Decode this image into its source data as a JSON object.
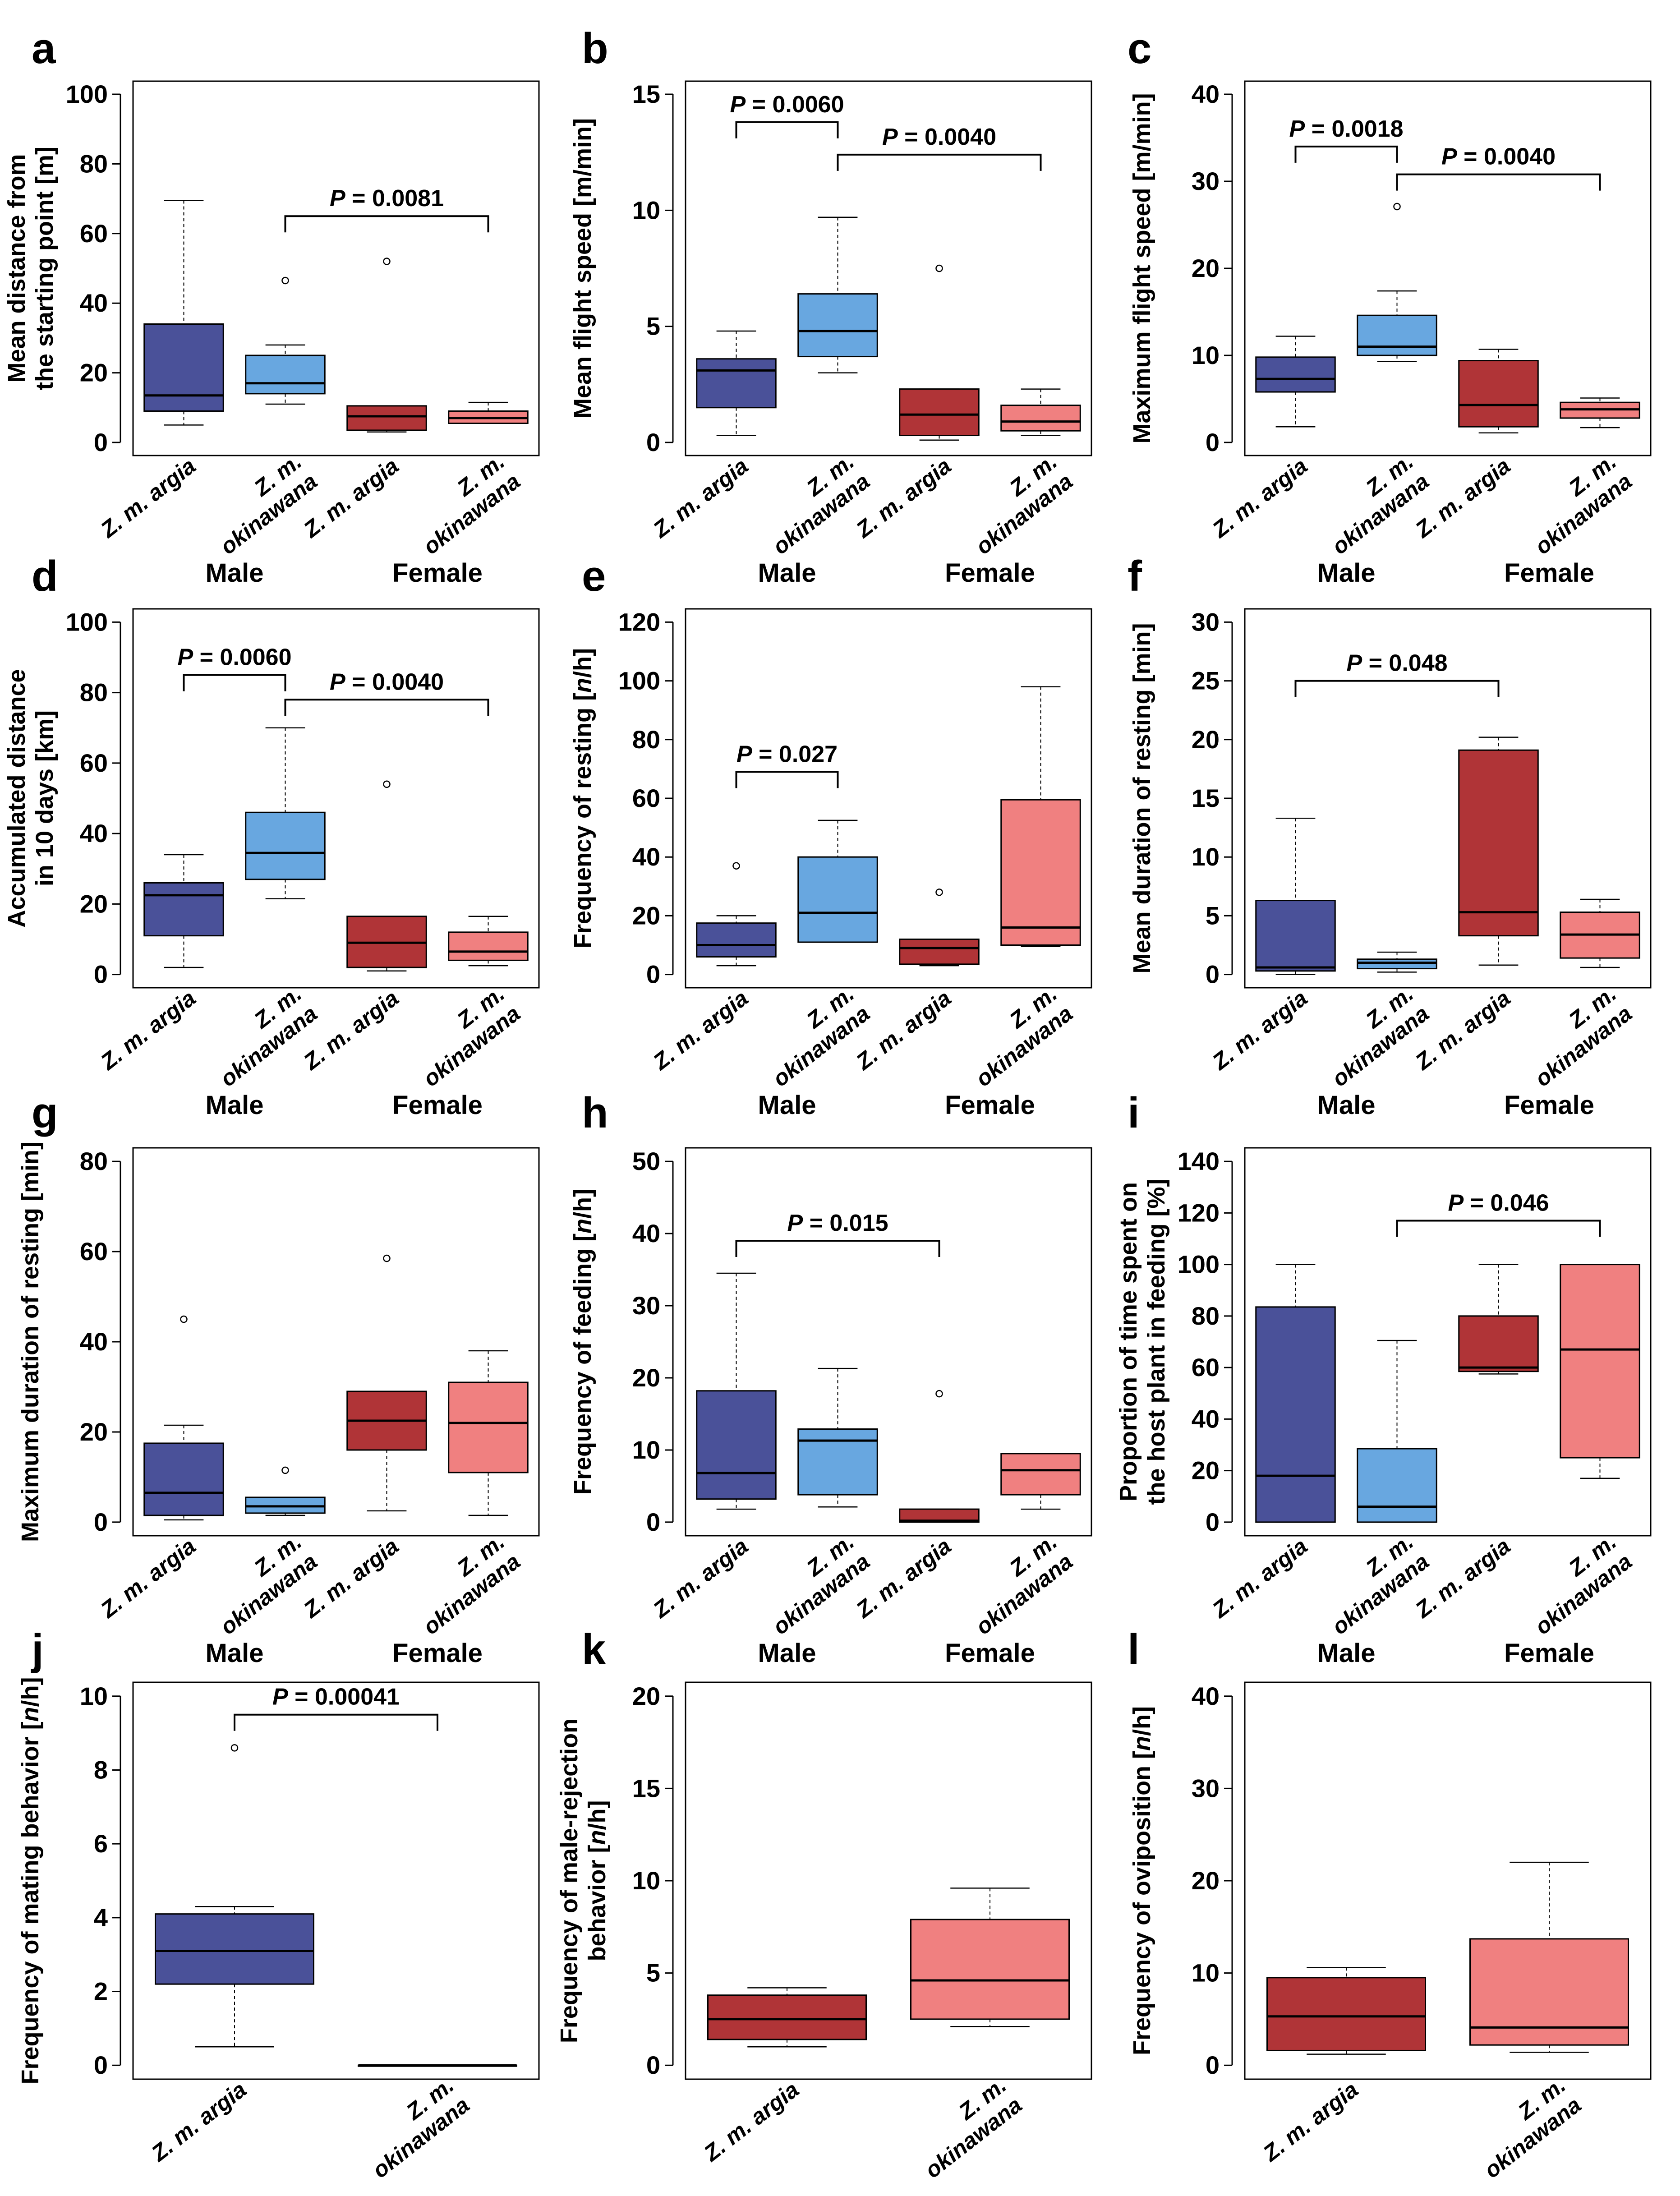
{
  "figure": {
    "description_free": true
  },
  "colors": {
    "argia_male": "#4a5199",
    "okinawana_male": "#68a7e0",
    "argia_female": "#b03437",
    "okinawana_female": "#f08080",
    "median": "#000000",
    "axis": "#000000"
  },
  "chart_data": [
    {
      "id": "a",
      "type": "boxplot",
      "letter": "a",
      "ylabel": [
        "Mean distance from",
        "the starting point [m]"
      ],
      "ylim": [
        0,
        100
      ],
      "yticks": [
        0,
        20,
        40,
        60,
        80,
        100
      ],
      "categories": [
        "Z. m. argia",
        "Z. m. okinawana",
        "Z. m. argia",
        "Z. m. okinawana"
      ],
      "groups": [
        "Male",
        "Female"
      ],
      "boxes": [
        {
          "color": "argia_male",
          "min": 5,
          "q1": 9,
          "median": 13.5,
          "q3": 34,
          "max": 69.5,
          "outliers": []
        },
        {
          "color": "okinawana_male",
          "min": 11,
          "q1": 14,
          "median": 17,
          "q3": 25,
          "max": 28,
          "outliers": [
            46.5
          ]
        },
        {
          "color": "argia_female",
          "min": 3,
          "q1": 3.5,
          "median": 7.5,
          "q3": 10.5,
          "max": 10.5,
          "outliers": [
            52
          ]
        },
        {
          "color": "okinawana_female",
          "min": 5.5,
          "q1": 5.5,
          "median": 7,
          "q3": 9,
          "max": 11.5,
          "outliers": []
        }
      ],
      "brackets": [
        {
          "from": 1,
          "to": 3,
          "y": 65,
          "label": "P = 0.0081"
        }
      ]
    },
    {
      "id": "b",
      "type": "boxplot",
      "letter": "b",
      "ylabel": [
        "Mean flight speed [m/min]"
      ],
      "ylim": [
        0,
        15
      ],
      "yticks": [
        0,
        5,
        10,
        15
      ],
      "categories": [
        "Z. m. argia",
        "Z. m. okinawana",
        "Z. m. argia",
        "Z. m. okinawana"
      ],
      "groups": [
        "Male",
        "Female"
      ],
      "boxes": [
        {
          "color": "argia_male",
          "min": 0.3,
          "q1": 1.5,
          "median": 3.1,
          "q3": 3.6,
          "max": 4.8,
          "outliers": []
        },
        {
          "color": "okinawana_male",
          "min": 3,
          "q1": 3.7,
          "median": 4.8,
          "q3": 6.4,
          "max": 9.7,
          "outliers": []
        },
        {
          "color": "argia_female",
          "min": 0.1,
          "q1": 0.3,
          "median": 1.2,
          "q3": 2.3,
          "max": 2.3,
          "outliers": [
            7.5
          ]
        },
        {
          "color": "okinawana_female",
          "min": 0.3,
          "q1": 0.5,
          "median": 0.9,
          "q3": 1.6,
          "max": 2.3,
          "outliers": []
        }
      ],
      "brackets": [
        {
          "from": 0,
          "to": 1,
          "y": 13.8,
          "label": "P = 0.0060"
        },
        {
          "from": 1,
          "to": 3,
          "y": 12.4,
          "label": "P = 0.0040"
        }
      ]
    },
    {
      "id": "c",
      "type": "boxplot",
      "letter": "c",
      "ylabel": [
        "Maximum flight speed [m/min]"
      ],
      "ylim": [
        0,
        40
      ],
      "yticks": [
        0,
        10,
        20,
        30,
        40
      ],
      "categories": [
        "Z. m. argia",
        "Z. m. okinawana",
        "Z. m. argia",
        "Z. m. okinawana"
      ],
      "groups": [
        "Male",
        "Female"
      ],
      "boxes": [
        {
          "color": "argia_male",
          "min": 1.8,
          "q1": 5.8,
          "median": 7.3,
          "q3": 9.8,
          "max": 12.2,
          "outliers": []
        },
        {
          "color": "okinawana_male",
          "min": 9.3,
          "q1": 10,
          "median": 11,
          "q3": 14.6,
          "max": 17.4,
          "outliers": [
            27.1
          ]
        },
        {
          "color": "argia_female",
          "min": 1.1,
          "q1": 1.8,
          "median": 4.3,
          "q3": 9.4,
          "max": 10.7,
          "outliers": []
        },
        {
          "color": "okinawana_female",
          "min": 1.7,
          "q1": 2.8,
          "median": 3.8,
          "q3": 4.6,
          "max": 5.1,
          "outliers": []
        }
      ],
      "brackets": [
        {
          "from": 0,
          "to": 1,
          "y": 34,
          "label": "P = 0.0018"
        },
        {
          "from": 1,
          "to": 3,
          "y": 30.8,
          "label": "P = 0.0040"
        }
      ]
    },
    {
      "id": "d",
      "type": "boxplot",
      "letter": "d",
      "ylabel": [
        "Accumulated distance",
        "in 10 days [km]"
      ],
      "ylim": [
        0,
        100
      ],
      "yticks": [
        0,
        20,
        40,
        60,
        80,
        100
      ],
      "categories": [
        "Z. m. argia",
        "Z. m. okinawana",
        "Z. m. argia",
        "Z. m. okinawana"
      ],
      "groups": [
        "Male",
        "Female"
      ],
      "boxes": [
        {
          "color": "argia_male",
          "min": 2,
          "q1": 11,
          "median": 22.5,
          "q3": 26,
          "max": 34,
          "outliers": []
        },
        {
          "color": "okinawana_male",
          "min": 21.5,
          "q1": 27,
          "median": 34.5,
          "q3": 46,
          "max": 70,
          "outliers": []
        },
        {
          "color": "argia_female",
          "min": 1,
          "q1": 2,
          "median": 9,
          "q3": 16.5,
          "max": 16.5,
          "outliers": [
            54
          ]
        },
        {
          "color": "okinawana_female",
          "min": 2.5,
          "q1": 4,
          "median": 6.5,
          "q3": 12,
          "max": 16.5,
          "outliers": []
        }
      ],
      "brackets": [
        {
          "from": 0,
          "to": 1,
          "y": 85,
          "label": "P = 0.0060"
        },
        {
          "from": 1,
          "to": 3,
          "y": 78,
          "label": "P = 0.0040"
        }
      ]
    },
    {
      "id": "e",
      "type": "boxplot",
      "letter": "e",
      "ylabel": [
        "Frequency of resting [n/h]"
      ],
      "ylim": [
        0,
        120
      ],
      "yticks": [
        0,
        20,
        40,
        60,
        80,
        100,
        120
      ],
      "categories": [
        "Z. m. argia",
        "Z. m. okinawana",
        "Z. m. argia",
        "Z. m. okinawana"
      ],
      "groups": [
        "Male",
        "Female"
      ],
      "boxes": [
        {
          "color": "argia_male",
          "min": 3,
          "q1": 6,
          "median": 10,
          "q3": 17.5,
          "max": 20,
          "outliers": [
            37
          ]
        },
        {
          "color": "okinawana_male",
          "min": 11,
          "q1": 11,
          "median": 21,
          "q3": 40,
          "max": 52.5,
          "outliers": []
        },
        {
          "color": "argia_female",
          "min": 3,
          "q1": 3.5,
          "median": 9,
          "q3": 12,
          "max": 12,
          "outliers": [
            28
          ]
        },
        {
          "color": "okinawana_female",
          "min": 9.5,
          "q1": 10,
          "median": 16,
          "q3": 59.5,
          "max": 98,
          "outliers": []
        }
      ],
      "brackets": [
        {
          "from": 0,
          "to": 1,
          "y": 69,
          "label": "P = 0.027"
        }
      ]
    },
    {
      "id": "f",
      "type": "boxplot",
      "letter": "f",
      "ylabel": [
        "Mean duration of resting [min]"
      ],
      "ylim": [
        0,
        30
      ],
      "yticks": [
        0,
        5,
        10,
        15,
        20,
        25,
        30
      ],
      "categories": [
        "Z. m. argia",
        "Z. m. okinawana",
        "Z. m. argia",
        "Z. m. okinawana"
      ],
      "groups": [
        "Male",
        "Female"
      ],
      "boxes": [
        {
          "color": "argia_male",
          "min": 0,
          "q1": 0.3,
          "median": 0.6,
          "q3": 6.3,
          "max": 13.3,
          "outliers": []
        },
        {
          "color": "okinawana_male",
          "min": 0.2,
          "q1": 0.5,
          "median": 1,
          "q3": 1.3,
          "max": 1.9,
          "outliers": []
        },
        {
          "color": "argia_female",
          "min": 0.8,
          "q1": 3.3,
          "median": 5.3,
          "q3": 19.1,
          "max": 20.2,
          "outliers": []
        },
        {
          "color": "okinawana_female",
          "min": 0.6,
          "q1": 1.4,
          "median": 3.4,
          "q3": 5.3,
          "max": 6.4,
          "outliers": []
        }
      ],
      "brackets": [
        {
          "from": 0,
          "to": 2,
          "y": 25,
          "label": "P = 0.048"
        }
      ]
    },
    {
      "id": "g",
      "type": "boxplot",
      "letter": "g",
      "ylabel": [
        "Maximum duration of resting [min]"
      ],
      "ylim": [
        0,
        80
      ],
      "yticks": [
        0,
        20,
        40,
        60,
        80
      ],
      "categories": [
        "Z. m. argia",
        "Z. m. okinawana",
        "Z. m. argia",
        "Z. m. okinawana"
      ],
      "groups": [
        "Male",
        "Female"
      ],
      "boxes": [
        {
          "color": "argia_male",
          "min": 0.5,
          "q1": 1.5,
          "median": 6.5,
          "q3": 17.5,
          "max": 21.5,
          "outliers": [
            45
          ]
        },
        {
          "color": "okinawana_male",
          "min": 1.5,
          "q1": 2,
          "median": 3.5,
          "q3": 5.5,
          "max": 5.5,
          "outliers": [
            11.5
          ]
        },
        {
          "color": "argia_female",
          "min": 2.5,
          "q1": 16,
          "median": 22.5,
          "q3": 29,
          "max": 29,
          "outliers": [
            58.5
          ]
        },
        {
          "color": "okinawana_female",
          "min": 1.5,
          "q1": 11,
          "median": 22,
          "q3": 31,
          "max": 38,
          "outliers": []
        }
      ],
      "brackets": []
    },
    {
      "id": "h",
      "type": "boxplot",
      "letter": "h",
      "ylabel": [
        "Frequency of feeding [n/h]"
      ],
      "ylim": [
        0,
        50
      ],
      "yticks": [
        0,
        10,
        20,
        30,
        40,
        50
      ],
      "categories": [
        "Z. m. argia",
        "Z. m. okinawana",
        "Z. m. argia",
        "Z. m. okinawana"
      ],
      "groups": [
        "Male",
        "Female"
      ],
      "boxes": [
        {
          "color": "argia_male",
          "min": 1.8,
          "q1": 3.2,
          "median": 6.8,
          "q3": 18.2,
          "max": 34.5,
          "outliers": []
        },
        {
          "color": "okinawana_male",
          "min": 2.1,
          "q1": 3.8,
          "median": 11.3,
          "q3": 12.9,
          "max": 21.3,
          "outliers": []
        },
        {
          "color": "argia_female",
          "min": 0,
          "q1": 0,
          "median": 0.2,
          "q3": 1.8,
          "max": 1.8,
          "outliers": [
            17.8
          ]
        },
        {
          "color": "okinawana_female",
          "min": 1.8,
          "q1": 3.8,
          "median": 7.2,
          "q3": 9.5,
          "max": 9.5,
          "outliers": []
        }
      ],
      "brackets": [
        {
          "from": 0,
          "to": 2,
          "y": 39,
          "label": "P = 0.015"
        }
      ]
    },
    {
      "id": "i",
      "type": "boxplot",
      "letter": "i",
      "ylabel": [
        "Proportion of time spent on",
        "the host plant in feeding [%]"
      ],
      "ylim": [
        0,
        140
      ],
      "yticks": [
        0,
        20,
        40,
        60,
        80,
        100,
        120,
        140
      ],
      "categories": [
        "Z. m. argia",
        "Z. m. okinawana",
        "Z. m. argia",
        "Z. m. okinawana"
      ],
      "groups": [
        "Male",
        "Female"
      ],
      "boxes": [
        {
          "color": "argia_male",
          "min": 0,
          "q1": 0,
          "median": 18,
          "q3": 83.5,
          "max": 100,
          "outliers": []
        },
        {
          "color": "okinawana_male",
          "min": 0,
          "q1": 0,
          "median": 6,
          "q3": 28.5,
          "max": 70.5,
          "outliers": []
        },
        {
          "color": "argia_female",
          "min": 57.5,
          "q1": 58.5,
          "median": 60,
          "q3": 80,
          "max": 100,
          "outliers": []
        },
        {
          "color": "okinawana_female",
          "min": 17,
          "q1": 25,
          "median": 67,
          "q3": 100,
          "max": 100,
          "outliers": []
        }
      ],
      "brackets": [
        {
          "from": 1,
          "to": 3,
          "y": 117,
          "label": "P = 0.046"
        }
      ]
    },
    {
      "id": "j",
      "type": "boxplot",
      "letter": "j",
      "ylabel": [
        "Frequency of mating behavior [n/h]"
      ],
      "ylim": [
        0,
        10
      ],
      "yticks": [
        0,
        2,
        4,
        6,
        8,
        10
      ],
      "categories": [
        "Z. m. argia",
        "Z. m. okinawana"
      ],
      "groups": [],
      "boxes": [
        {
          "color": "argia_male",
          "min": 0.5,
          "q1": 2.2,
          "median": 3.1,
          "q3": 4.1,
          "max": 4.3,
          "outliers": [
            8.6
          ]
        },
        {
          "color": "okinawana_male",
          "min": 0,
          "q1": 0,
          "median": 0,
          "q3": 0,
          "max": 0,
          "outliers": []
        }
      ],
      "brackets": [
        {
          "from": 0,
          "to": 1,
          "y": 9.5,
          "label": "P = 0.00041"
        }
      ]
    },
    {
      "id": "k",
      "type": "boxplot",
      "letter": "k",
      "ylabel": [
        "Frequency of male-rejection",
        "behavior [n/h]"
      ],
      "ylim": [
        0,
        20
      ],
      "yticks": [
        0,
        5,
        10,
        15,
        20
      ],
      "categories": [
        "Z. m. argia",
        "Z. m. okinawana"
      ],
      "groups": [],
      "boxes": [
        {
          "color": "argia_female",
          "min": 1,
          "q1": 1.4,
          "median": 2.5,
          "q3": 3.8,
          "max": 4.2,
          "outliers": []
        },
        {
          "color": "okinawana_female",
          "min": 2.1,
          "q1": 2.5,
          "median": 4.6,
          "q3": 7.9,
          "max": 9.6,
          "outliers": []
        }
      ],
      "brackets": []
    },
    {
      "id": "l",
      "type": "boxplot",
      "letter": "l",
      "ylabel": [
        "Frequency of oviposition [n/h]"
      ],
      "ylim": [
        0,
        40
      ],
      "yticks": [
        0,
        10,
        20,
        30,
        40
      ],
      "categories": [
        "Z. m. argia",
        "Z. m. okinawana"
      ],
      "groups": [],
      "boxes": [
        {
          "color": "argia_female",
          "min": 1.2,
          "q1": 1.6,
          "median": 5.3,
          "q3": 9.5,
          "max": 10.6,
          "outliers": []
        },
        {
          "color": "okinawana_female",
          "min": 1.4,
          "q1": 2.2,
          "median": 4.1,
          "q3": 13.7,
          "max": 22,
          "outliers": []
        }
      ],
      "brackets": []
    }
  ]
}
